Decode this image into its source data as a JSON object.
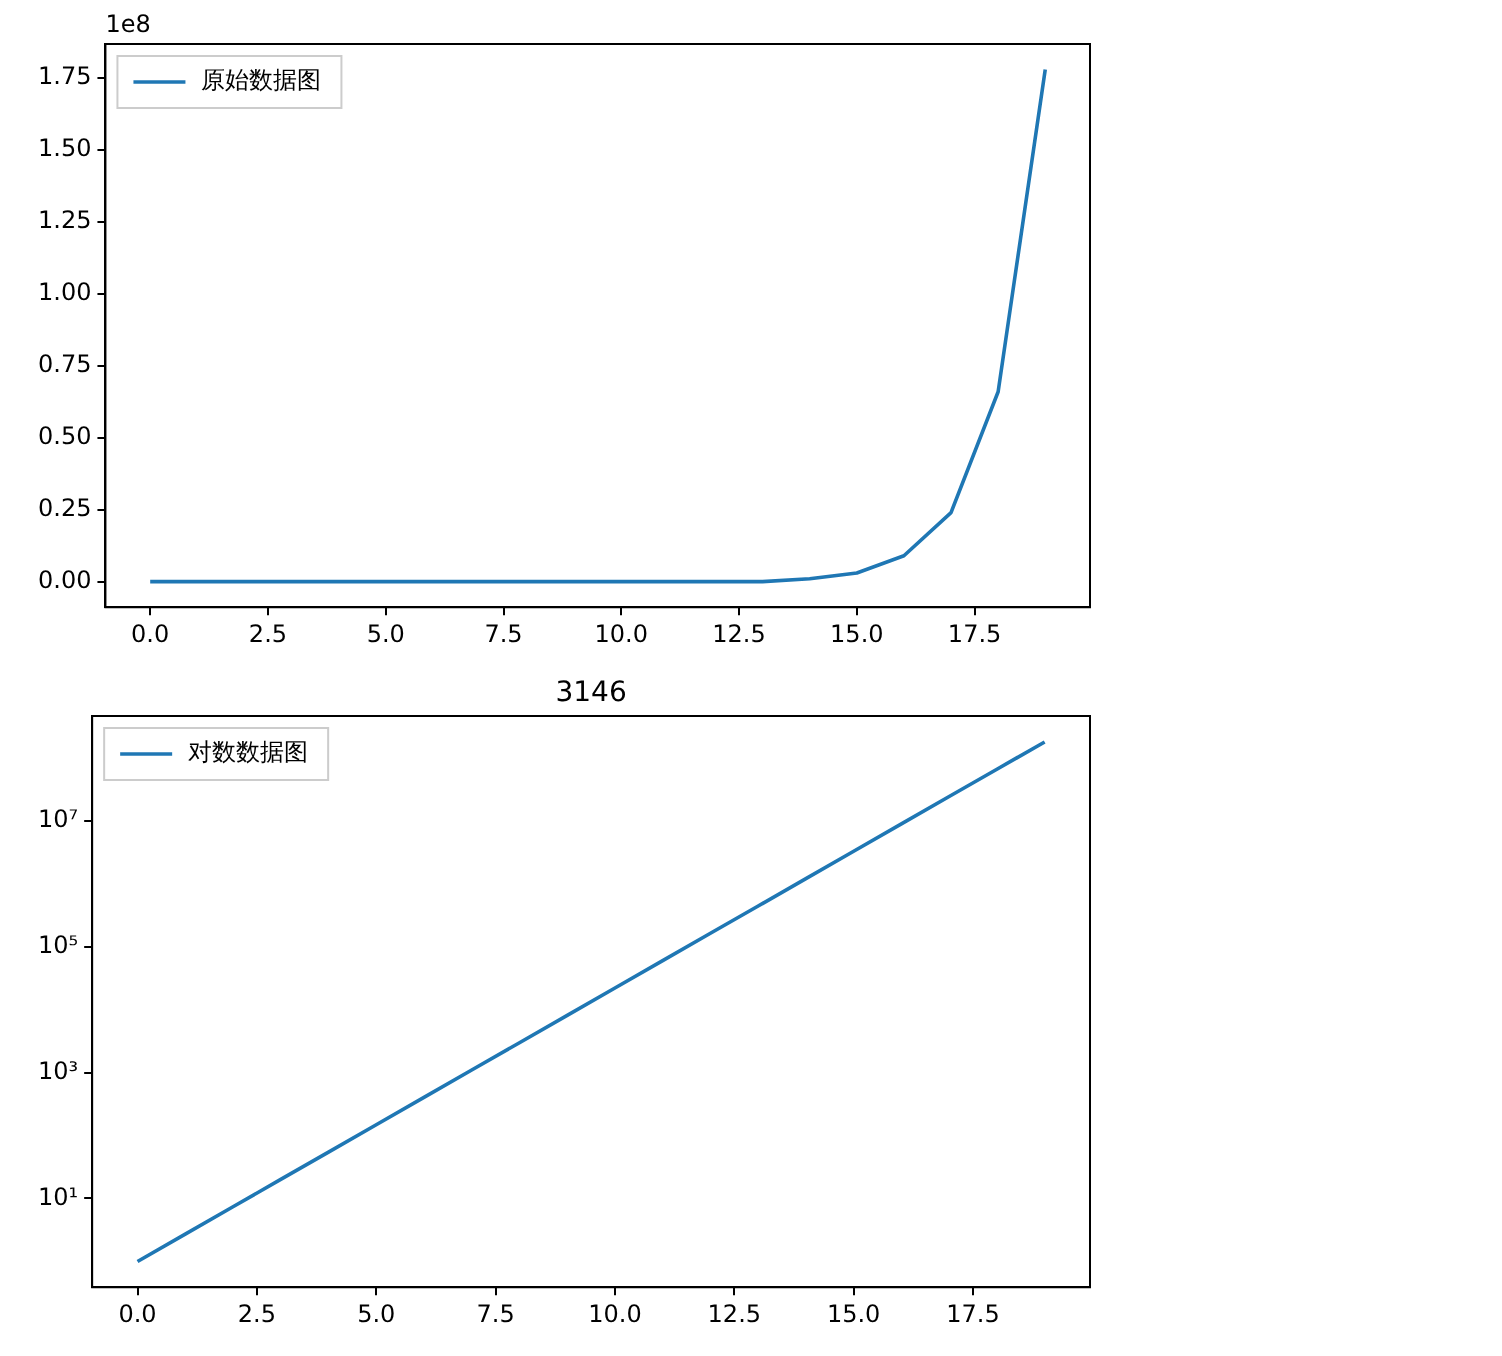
{
  "chart_data": [
    {
      "type": "line",
      "x": [
        0,
        1,
        2,
        3,
        4,
        5,
        6,
        7,
        8,
        9,
        10,
        11,
        12,
        13,
        14,
        15,
        16,
        17,
        18,
        19
      ],
      "series": [
        {
          "name": "原始数据图",
          "color": "#1f77b4",
          "values": [
            0,
            0,
            0,
            0,
            0,
            0,
            0,
            0,
            0,
            0,
            0,
            0,
            0,
            0,
            0.01,
            0.03,
            0.09,
            0.24,
            0.66,
            1.78
          ]
        }
      ],
      "xlim": [
        -0.95,
        19.95
      ],
      "xticks": [
        {
          "value": 0,
          "label": "0.0"
        },
        {
          "value": 2.5,
          "label": "2.5"
        },
        {
          "value": 5,
          "label": "5.0"
        },
        {
          "value": 7.5,
          "label": "7.5"
        },
        {
          "value": 10,
          "label": "10.0"
        },
        {
          "value": 12.5,
          "label": "12.5"
        },
        {
          "value": 15,
          "label": "15.0"
        },
        {
          "value": 17.5,
          "label": "17.5"
        }
      ],
      "ylim": [
        -0.089,
        1.869
      ],
      "yticks": [
        {
          "value": 0,
          "label": "0.00"
        },
        {
          "value": 0.25,
          "label": "0.25"
        },
        {
          "value": 0.5,
          "label": "0.50"
        },
        {
          "value": 0.75,
          "label": "0.75"
        },
        {
          "value": 1,
          "label": "1.00"
        },
        {
          "value": 1.25,
          "label": "1.25"
        },
        {
          "value": 1.5,
          "label": "1.50"
        },
        {
          "value": 1.75,
          "label": "1.75"
        }
      ],
      "annotations": [
        "1e8"
      ],
      "legend": "top left",
      "grid": false
    },
    {
      "type": "line",
      "title": "3146",
      "x": [
        0,
        1,
        2,
        3,
        4,
        5,
        6,
        7,
        8,
        9,
        10,
        11,
        12,
        13,
        14,
        15,
        16,
        17,
        18,
        19
      ],
      "series": [
        {
          "name": "对数数据图",
          "color": "#1f77b4",
          "values": [
            1,
            2.72,
            7.39,
            20.1,
            54.6,
            148,
            403,
            1100,
            2980,
            8100,
            22000,
            59900,
            163000,
            442000,
            1200000,
            3270000,
            8890000,
            24200000,
            65700000,
            178000000
          ]
        }
      ],
      "xlim": [
        -0.95,
        19.95
      ],
      "xticks": [
        {
          "value": 0,
          "label": "0.0"
        },
        {
          "value": 2.5,
          "label": "2.5"
        },
        {
          "value": 5,
          "label": "5.0"
        },
        {
          "value": 7.5,
          "label": "7.5"
        },
        {
          "value": 10,
          "label": "10.0"
        },
        {
          "value": 12.5,
          "label": "12.5"
        },
        {
          "value": 15,
          "label": "15.0"
        },
        {
          "value": 17.5,
          "label": "17.5"
        }
      ],
      "ylim": [
        0.39,
        460000000
      ],
      "yticks": [
        {
          "value": 10,
          "label": "10¹"
        },
        {
          "value": 1000,
          "label": "10³"
        },
        {
          "value": 100000,
          "label": "10⁵"
        },
        {
          "value": 10000000,
          "label": "10⁷"
        }
      ],
      "log": true,
      "legend": "top left",
      "grid": false
    }
  ]
}
